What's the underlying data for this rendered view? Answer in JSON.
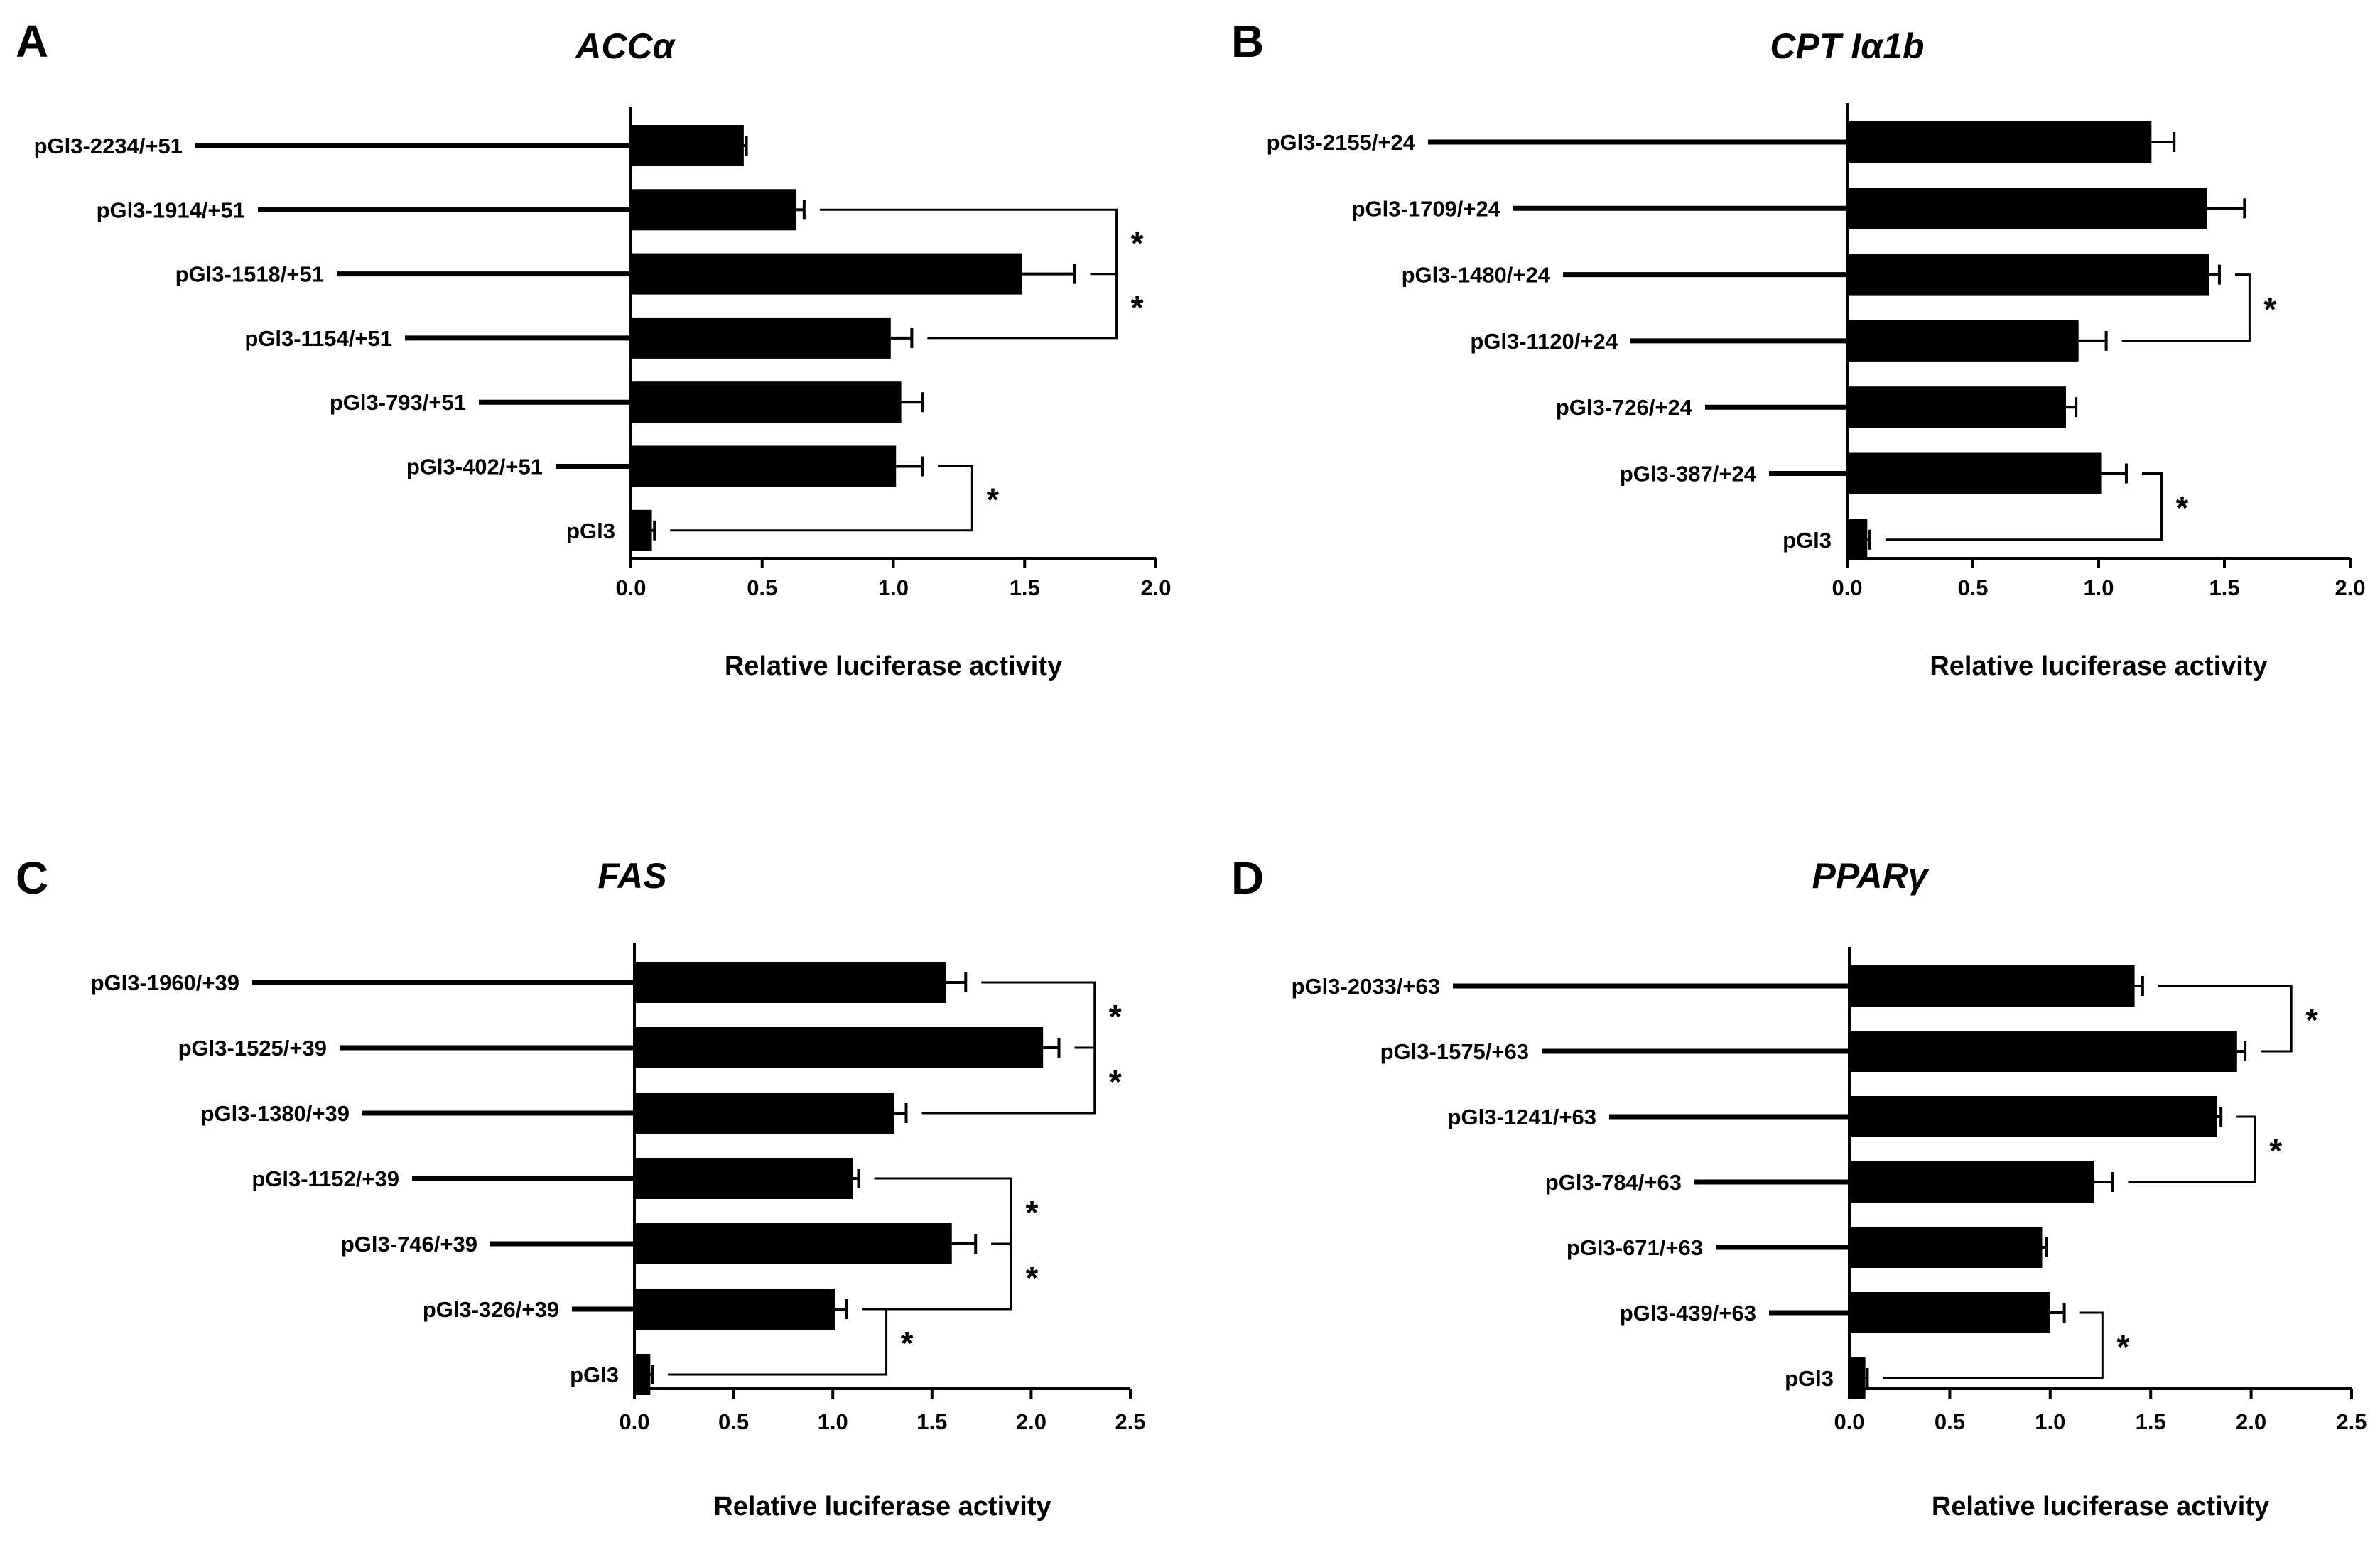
{
  "chart_data": [
    {
      "type": "bar",
      "panel": "A",
      "title": "ACCα",
      "xlabel": "Relative luciferase activity",
      "ylabel": "",
      "xlim": [
        0,
        2.0
      ],
      "ticks": [
        0.0,
        0.5,
        1.0,
        1.5,
        2.0
      ],
      "tick_labels": [
        "0.0",
        "0.5",
        "1.0",
        "1.5",
        "2.0"
      ],
      "categories": [
        "pGl3-2234/+51",
        "pGl3-1914/+51",
        "pGl3-1518/+51",
        "pGl3-1154/+51",
        "pGl3-793/+51",
        "pGl3-402/+51",
        "pGl3"
      ],
      "promoter_start": [
        -2234,
        -1914,
        -1518,
        -1154,
        -793,
        -402,
        null
      ],
      "values": [
        0.43,
        0.63,
        1.49,
        0.99,
        1.03,
        1.01,
        0.08
      ],
      "errors": [
        0.01,
        0.03,
        0.2,
        0.08,
        0.08,
        0.1,
        0.01
      ],
      "significance": [
        {
          "from": 1,
          "to": 2,
          "x": 1.85,
          "label": "*"
        },
        {
          "from": 2,
          "to": 3,
          "x": 1.85,
          "label": "*"
        },
        {
          "from": 5,
          "to": 6,
          "x": 1.3,
          "label": "*"
        }
      ]
    },
    {
      "type": "bar",
      "panel": "B",
      "title": "CPT Iα1b",
      "xlabel": "Relative luciferase activity",
      "ylabel": "",
      "xlim": [
        0,
        2.0
      ],
      "ticks": [
        0.0,
        0.5,
        1.0,
        1.5,
        2.0
      ],
      "tick_labels": [
        "0.0",
        "0.5",
        "1.0",
        "1.5",
        "2.0"
      ],
      "categories": [
        "pGl3-2155/+24",
        "pGl3-1709/+24",
        "pGl3-1480/+24",
        "pGl3-1120/+24",
        "pGl3-726/+24",
        "pGl3-387/+24",
        "pGl3"
      ],
      "promoter_start": [
        -2155,
        -1709,
        -1480,
        -1120,
        -726,
        -387,
        null
      ],
      "values": [
        1.21,
        1.43,
        1.44,
        0.92,
        0.87,
        1.01,
        0.08
      ],
      "errors": [
        0.09,
        0.15,
        0.04,
        0.11,
        0.04,
        0.1,
        0.01
      ],
      "significance": [
        {
          "from": 2,
          "to": 3,
          "x": 1.6,
          "label": "*"
        },
        {
          "from": 5,
          "to": 6,
          "x": 1.25,
          "label": "*"
        }
      ]
    },
    {
      "type": "bar",
      "panel": "C",
      "title": "FAS",
      "xlabel": "Relative luciferase activity",
      "ylabel": "",
      "xlim": [
        0,
        2.5
      ],
      "ticks": [
        0.0,
        0.5,
        1.0,
        1.5,
        2.0,
        2.5
      ],
      "tick_labels": [
        "0.0",
        "0.5",
        "1.0",
        "1.5",
        "2.0",
        "2.5"
      ],
      "categories": [
        "pGl3-1960/+39",
        "pGl3-1525/+39",
        "pGl3-1380/+39",
        "pGl3-1152/+39",
        "pGl3-746/+39",
        "pGl3-326/+39",
        "pGl3"
      ],
      "promoter_start": [
        -1960,
        -1525,
        -1380,
        -1152,
        -746,
        -326,
        null
      ],
      "values": [
        1.57,
        2.06,
        1.31,
        1.1,
        1.6,
        1.01,
        0.08
      ],
      "errors": [
        0.1,
        0.08,
        0.06,
        0.03,
        0.12,
        0.06,
        0.01
      ],
      "significance": [
        {
          "from": 0,
          "to": 1,
          "x": 2.32,
          "label": "*"
        },
        {
          "from": 1,
          "to": 2,
          "x": 2.32,
          "label": "*"
        },
        {
          "from": 3,
          "to": 4,
          "x": 1.9,
          "label": "*"
        },
        {
          "from": 4,
          "to": 5,
          "x": 1.9,
          "label": "*"
        },
        {
          "from": 5,
          "to": 6,
          "x": 1.27,
          "label": "*"
        }
      ]
    },
    {
      "type": "bar",
      "panel": "D",
      "title": "PPARγ",
      "xlabel": "Relative luciferase activity",
      "ylabel": "",
      "xlim": [
        0,
        2.5
      ],
      "ticks": [
        0.0,
        0.5,
        1.0,
        1.5,
        2.0,
        2.5
      ],
      "tick_labels": [
        "0.0",
        "0.5",
        "1.0",
        "1.5",
        "2.0",
        "2.5"
      ],
      "categories": [
        "pGl3-2033/+63",
        "pGl3-1575/+63",
        "pGl3-1241/+63",
        "pGl3-784/+63",
        "pGl3-671/+63",
        "pGl3-439/+63",
        "pGl3"
      ],
      "promoter_start": [
        -2033,
        -1575,
        -1241,
        -784,
        -671,
        -439,
        null
      ],
      "values": [
        1.42,
        1.93,
        1.83,
        1.22,
        0.96,
        1.0,
        0.08
      ],
      "errors": [
        0.04,
        0.04,
        0.02,
        0.09,
        0.02,
        0.07,
        0.01
      ],
      "significance": [
        {
          "from": 0,
          "to": 1,
          "x": 2.2,
          "label": "*"
        },
        {
          "from": 2,
          "to": 3,
          "x": 2.02,
          "label": "*"
        },
        {
          "from": 5,
          "to": 6,
          "x": 1.26,
          "label": "*"
        }
      ]
    }
  ]
}
